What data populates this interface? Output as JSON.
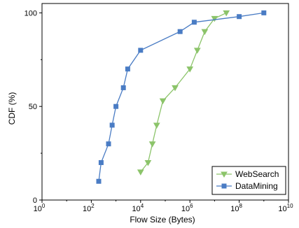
{
  "chart_data": {
    "type": "line",
    "xlabel": "Flow Size (Bytes)",
    "ylabel": "CDF (%)",
    "x_scale": "log10",
    "xlim": [
      1,
      10000000000
    ],
    "ylim": [
      0,
      105
    ],
    "x_ticks": [
      {
        "base": "10",
        "exp": "0",
        "value": 1
      },
      {
        "base": "10",
        "exp": "2",
        "value": 100
      },
      {
        "base": "10",
        "exp": "4",
        "value": 10000
      },
      {
        "base": "10",
        "exp": "6",
        "value": 1000000
      },
      {
        "base": "10",
        "exp": "8",
        "value": 100000000
      },
      {
        "base": "10",
        "exp": "10",
        "value": 10000000000
      }
    ],
    "y_ticks": [
      "0",
      "50",
      "100"
    ],
    "legend_position": "bottom-right",
    "series": [
      {
        "name": "WebSearch",
        "color": "#8cc46a",
        "marker": "triangle-down",
        "x": [
          10000,
          20000,
          30000,
          45000,
          80000,
          250000,
          1000000,
          2000000,
          4000000,
          10000000,
          30000000
        ],
        "y": [
          15,
          20,
          30,
          40,
          53,
          60,
          70,
          80,
          90,
          97,
          100
        ]
      },
      {
        "name": "DataMining",
        "color": "#4a7cc4",
        "marker": "square",
        "x": [
          200,
          250,
          500,
          700,
          1000,
          2000,
          3000,
          10000,
          400000,
          1500000,
          100000000,
          1000000000
        ],
        "y": [
          10,
          20,
          30,
          40,
          50,
          60,
          70,
          80,
          90,
          95,
          98,
          100
        ]
      }
    ]
  }
}
